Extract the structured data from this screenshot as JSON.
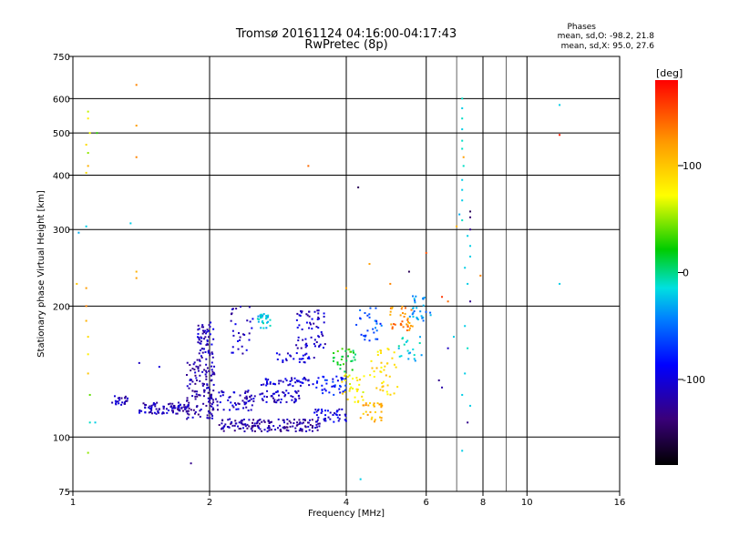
{
  "chart_data": {
    "type": "scatter",
    "title": "Tromsø 20161124 04:16:00-04:17:43",
    "subtitle": "RwPretec (8p)",
    "xlabel": "Frequency [MHz]",
    "ylabel": "Stationary phase Virtual Height [km]",
    "x_scale": "log",
    "y_scale": "log",
    "xlim": [
      1,
      16
    ],
    "ylim": [
      75,
      750
    ],
    "x_ticks": [
      1,
      2,
      4,
      6,
      8,
      10,
      16
    ],
    "y_ticks": [
      75,
      100,
      200,
      300,
      400,
      500,
      600,
      750
    ],
    "x_tick_labels": [
      "1",
      "2",
      "4",
      "6",
      "8",
      "10",
      "16"
    ],
    "y_tick_labels": [
      "75",
      "100",
      "200",
      "300",
      "400",
      "500",
      "600",
      "750"
    ],
    "grid": true,
    "stats": {
      "heading": "Phases",
      "line_o": "mean, sd,O: -98.2, 21.8",
      "line_x": "mean, sd,X:  95.0, 27.6"
    },
    "colorbar": {
      "label": "[deg]",
      "range": [
        -180,
        180
      ],
      "ticks": [
        100,
        0,
        -100
      ],
      "tick_labels": [
        "100",
        "0",
        "-100"
      ],
      "placement": "right"
    },
    "points": [
      {
        "x": 1.08,
        "y": 560,
        "c": 60
      },
      {
        "x": 1.08,
        "y": 540,
        "c": 80
      },
      {
        "x": 1.09,
        "y": 500,
        "c": 70
      },
      {
        "x": 1.07,
        "y": 470,
        "c": 90
      },
      {
        "x": 1.08,
        "y": 450,
        "c": 50
      },
      {
        "x": 1.08,
        "y": 420,
        "c": 110
      },
      {
        "x": 1.07,
        "y": 405,
        "c": 90
      },
      {
        "x": 1.13,
        "y": 500,
        "c": 30
      },
      {
        "x": 1.38,
        "y": 645,
        "c": 130
      },
      {
        "x": 1.38,
        "y": 520,
        "c": 120
      },
      {
        "x": 1.38,
        "y": 440,
        "c": 130
      },
      {
        "x": 1.38,
        "y": 240,
        "c": 110
      },
      {
        "x": 1.38,
        "y": 232,
        "c": 120
      },
      {
        "x": 1.07,
        "y": 305,
        "c": -20
      },
      {
        "x": 1.34,
        "y": 310,
        "c": -20
      },
      {
        "x": 1.03,
        "y": 295,
        "c": -30
      },
      {
        "x": 1.02,
        "y": 225,
        "c": 100
      },
      {
        "x": 1.07,
        "y": 220,
        "c": 120
      },
      {
        "x": 1.07,
        "y": 200,
        "c": 130
      },
      {
        "x": 1.07,
        "y": 185,
        "c": 110
      },
      {
        "x": 1.08,
        "y": 170,
        "c": 90
      },
      {
        "x": 1.08,
        "y": 155,
        "c": 80
      },
      {
        "x": 1.08,
        "y": 140,
        "c": 100
      },
      {
        "x": 1.09,
        "y": 125,
        "c": 40
      },
      {
        "x": 1.09,
        "y": 108,
        "c": -10
      },
      {
        "x": 1.12,
        "y": 108,
        "c": -20
      },
      {
        "x": 1.08,
        "y": 92,
        "c": 50
      },
      {
        "x": 1.82,
        "y": 87,
        "c": -130
      },
      {
        "x": 3.3,
        "y": 420,
        "c": 140
      },
      {
        "x": 4.25,
        "y": 375,
        "c": -150
      },
      {
        "x": 4.5,
        "y": 250,
        "c": 120
      },
      {
        "x": 5.0,
        "y": 225,
        "c": 130
      },
      {
        "x": 5.5,
        "y": 240,
        "c": -150
      },
      {
        "x": 6.0,
        "y": 265,
        "c": 150
      },
      {
        "x": 6.5,
        "y": 210,
        "c": 160
      },
      {
        "x": 6.7,
        "y": 205,
        "c": 140
      },
      {
        "x": 4.0,
        "y": 220,
        "c": 120
      },
      {
        "x": 4.3,
        "y": 80,
        "c": -20
      },
      {
        "x": 1.4,
        "y": 148,
        "c": -110
      },
      {
        "x": 1.55,
        "y": 145,
        "c": -100
      },
      {
        "x": 7.2,
        "y": 600,
        "c": -10
      },
      {
        "x": 7.2,
        "y": 570,
        "c": -20
      },
      {
        "x": 7.2,
        "y": 540,
        "c": -10
      },
      {
        "x": 7.2,
        "y": 510,
        "c": -20
      },
      {
        "x": 7.2,
        "y": 480,
        "c": -10
      },
      {
        "x": 7.2,
        "y": 460,
        "c": -10
      },
      {
        "x": 7.25,
        "y": 440,
        "c": 120
      },
      {
        "x": 7.25,
        "y": 420,
        "c": -10
      },
      {
        "x": 7.2,
        "y": 390,
        "c": -20
      },
      {
        "x": 7.2,
        "y": 370,
        "c": -20
      },
      {
        "x": 7.2,
        "y": 350,
        "c": -20
      },
      {
        "x": 7.1,
        "y": 325,
        "c": -30
      },
      {
        "x": 7.2,
        "y": 315,
        "c": -10
      },
      {
        "x": 7.0,
        "y": 305,
        "c": 110
      },
      {
        "x": 7.5,
        "y": 330,
        "c": -150
      },
      {
        "x": 7.5,
        "y": 320,
        "c": -140
      },
      {
        "x": 7.5,
        "y": 300,
        "c": -130
      },
      {
        "x": 7.4,
        "y": 290,
        "c": -20
      },
      {
        "x": 7.5,
        "y": 275,
        "c": -20
      },
      {
        "x": 7.5,
        "y": 260,
        "c": -20
      },
      {
        "x": 7.3,
        "y": 245,
        "c": -20
      },
      {
        "x": 7.4,
        "y": 225,
        "c": -20
      },
      {
        "x": 7.5,
        "y": 205,
        "c": -130
      },
      {
        "x": 7.3,
        "y": 180,
        "c": -20
      },
      {
        "x": 7.4,
        "y": 160,
        "c": -10
      },
      {
        "x": 7.3,
        "y": 140,
        "c": -20
      },
      {
        "x": 7.2,
        "y": 125,
        "c": -20
      },
      {
        "x": 7.5,
        "y": 118,
        "c": -20
      },
      {
        "x": 7.4,
        "y": 108,
        "c": -130
      },
      {
        "x": 7.2,
        "y": 93,
        "c": -20
      },
      {
        "x": 7.9,
        "y": 235,
        "c": 130
      },
      {
        "x": 11.8,
        "y": 580,
        "c": -20
      },
      {
        "x": 11.8,
        "y": 495,
        "c": 170
      },
      {
        "x": 11.8,
        "y": 225,
        "c": -20
      },
      {
        "x": 6.4,
        "y": 135,
        "c": -130
      },
      {
        "x": 6.5,
        "y": 130,
        "c": -120
      },
      {
        "x": 6.7,
        "y": 160,
        "c": -110
      },
      {
        "x": 6.9,
        "y": 170,
        "c": -20
      }
    ],
    "clusters": [
      {
        "x": [
          1.22,
          1.32
        ],
        "y": [
          118,
          125
        ],
        "n": 25,
        "c": -110
      },
      {
        "x": [
          1.4,
          1.8
        ],
        "y": [
          113,
          120
        ],
        "n": 90,
        "c": -115
      },
      {
        "x": [
          1.78,
          2.05
        ],
        "y": [
          110,
          150
        ],
        "n": 120,
        "c": -120
      },
      {
        "x": [
          1.88,
          2.05
        ],
        "y": [
          150,
          185
        ],
        "n": 60,
        "c": -110
      },
      {
        "x": [
          2.1,
          2.6
        ],
        "y": [
          103,
          110
        ],
        "n": 70,
        "c": -120
      },
      {
        "x": [
          2.0,
          2.5
        ],
        "y": [
          115,
          128
        ],
        "n": 55,
        "c": -110
      },
      {
        "x": [
          2.2,
          2.5
        ],
        "y": [
          155,
          200
        ],
        "n": 30,
        "c": -110
      },
      {
        "x": [
          2.55,
          2.72
        ],
        "y": [
          178,
          192
        ],
        "n": 30,
        "c": -20
      },
      {
        "x": [
          2.6,
          3.5
        ],
        "y": [
          103,
          110
        ],
        "n": 90,
        "c": -120
      },
      {
        "x": [
          2.4,
          3.2
        ],
        "y": [
          120,
          128
        ],
        "n": 60,
        "c": -110
      },
      {
        "x": [
          2.6,
          3.4
        ],
        "y": [
          131,
          137
        ],
        "n": 45,
        "c": -100
      },
      {
        "x": [
          2.8,
          3.4
        ],
        "y": [
          148,
          156
        ],
        "n": 25,
        "c": -100
      },
      {
        "x": [
          3.1,
          3.6
        ],
        "y": [
          160,
          196
        ],
        "n": 60,
        "c": -110
      },
      {
        "x": [
          3.4,
          4.0
        ],
        "y": [
          108,
          116
        ],
        "n": 40,
        "c": -100
      },
      {
        "x": [
          3.4,
          4.0
        ],
        "y": [
          125,
          138
        ],
        "n": 40,
        "c": -80
      },
      {
        "x": [
          3.7,
          4.2
        ],
        "y": [
          140,
          160
        ],
        "n": 30,
        "c": 20
      },
      {
        "x": [
          3.9,
          4.4
        ],
        "y": [
          120,
          140
        ],
        "n": 30,
        "c": 80
      },
      {
        "x": [
          4.3,
          4.8
        ],
        "y": [
          108,
          120
        ],
        "n": 30,
        "c": 110
      },
      {
        "x": [
          4.5,
          5.2
        ],
        "y": [
          125,
          160
        ],
        "n": 40,
        "c": 90
      },
      {
        "x": [
          4.2,
          4.8
        ],
        "y": [
          165,
          200
        ],
        "n": 30,
        "c": -60
      },
      {
        "x": [
          5.0,
          5.6
        ],
        "y": [
          175,
          200
        ],
        "n": 35,
        "c": 130
      },
      {
        "x": [
          5.5,
          6.2
        ],
        "y": [
          185,
          212
        ],
        "n": 30,
        "c": -40
      },
      {
        "x": [
          5.2,
          5.9
        ],
        "y": [
          145,
          170
        ],
        "n": 20,
        "c": -20
      }
    ]
  }
}
